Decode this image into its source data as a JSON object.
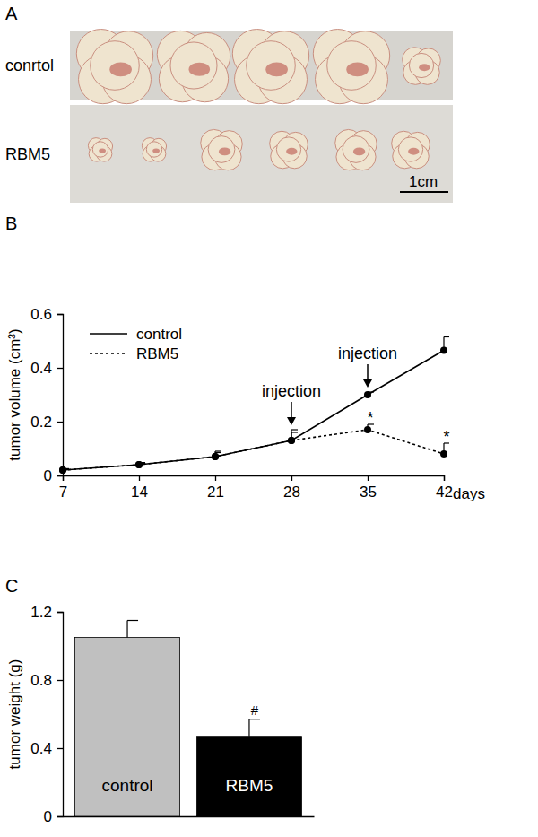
{
  "panel_a": {
    "title": "A",
    "rows": [
      "conrtol",
      "RBM5"
    ],
    "scale_bar": "1cm"
  },
  "chart_data": [
    {
      "type": "line",
      "title": "B",
      "x_label": "days",
      "y_label": "tumor volume (cm³)",
      "x": [
        7,
        14,
        21,
        28,
        35,
        42
      ],
      "series": [
        {
          "name": "control",
          "color": "#000000",
          "line_style": "solid",
          "marker": "circle",
          "values": [
            0.02,
            0.04,
            0.07,
            0.13,
            0.3,
            0.465
          ],
          "errors": [
            0.005,
            0.008,
            0.02,
            0.04,
            0.01,
            0.05
          ]
        },
        {
          "name": "RBM5",
          "color": "#000000",
          "line_style": "dotted",
          "marker": "circle",
          "values": [
            0.02,
            0.04,
            0.07,
            0.13,
            0.17,
            0.08
          ],
          "errors": [
            0.005,
            0.005,
            0.015,
            0.03,
            0.02,
            0.04
          ]
        }
      ],
      "xlim": [
        7,
        42
      ],
      "xticks": [
        7,
        14,
        21,
        28,
        35,
        42
      ],
      "ylim": [
        0,
        0.6
      ],
      "yticks": [
        0,
        0.2,
        0.4,
        0.6
      ],
      "legend": "upper left",
      "annotations": [
        {
          "text": "injection",
          "x": 28,
          "series": 0
        },
        {
          "text": "injection",
          "x": 35,
          "series": 0
        }
      ],
      "significance": [
        {
          "text": "*",
          "x": 35,
          "series": 1
        },
        {
          "text": "*",
          "x": 42,
          "series": 1
        }
      ]
    },
    {
      "type": "bar",
      "title": "C",
      "y_label": "tumor weight (g)",
      "categories": [
        "control",
        "RBM5"
      ],
      "values": [
        1.05,
        0.47
      ],
      "errors": [
        0.1,
        0.1
      ],
      "colors": [
        "#c0c0c0",
        "#000000"
      ],
      "ylim": [
        0,
        1.2
      ],
      "yticks": [
        0,
        0.4,
        0.8,
        1.2
      ],
      "tick_labels": "y",
      "significance": [
        {
          "text": "#",
          "category": 1
        }
      ]
    }
  ]
}
